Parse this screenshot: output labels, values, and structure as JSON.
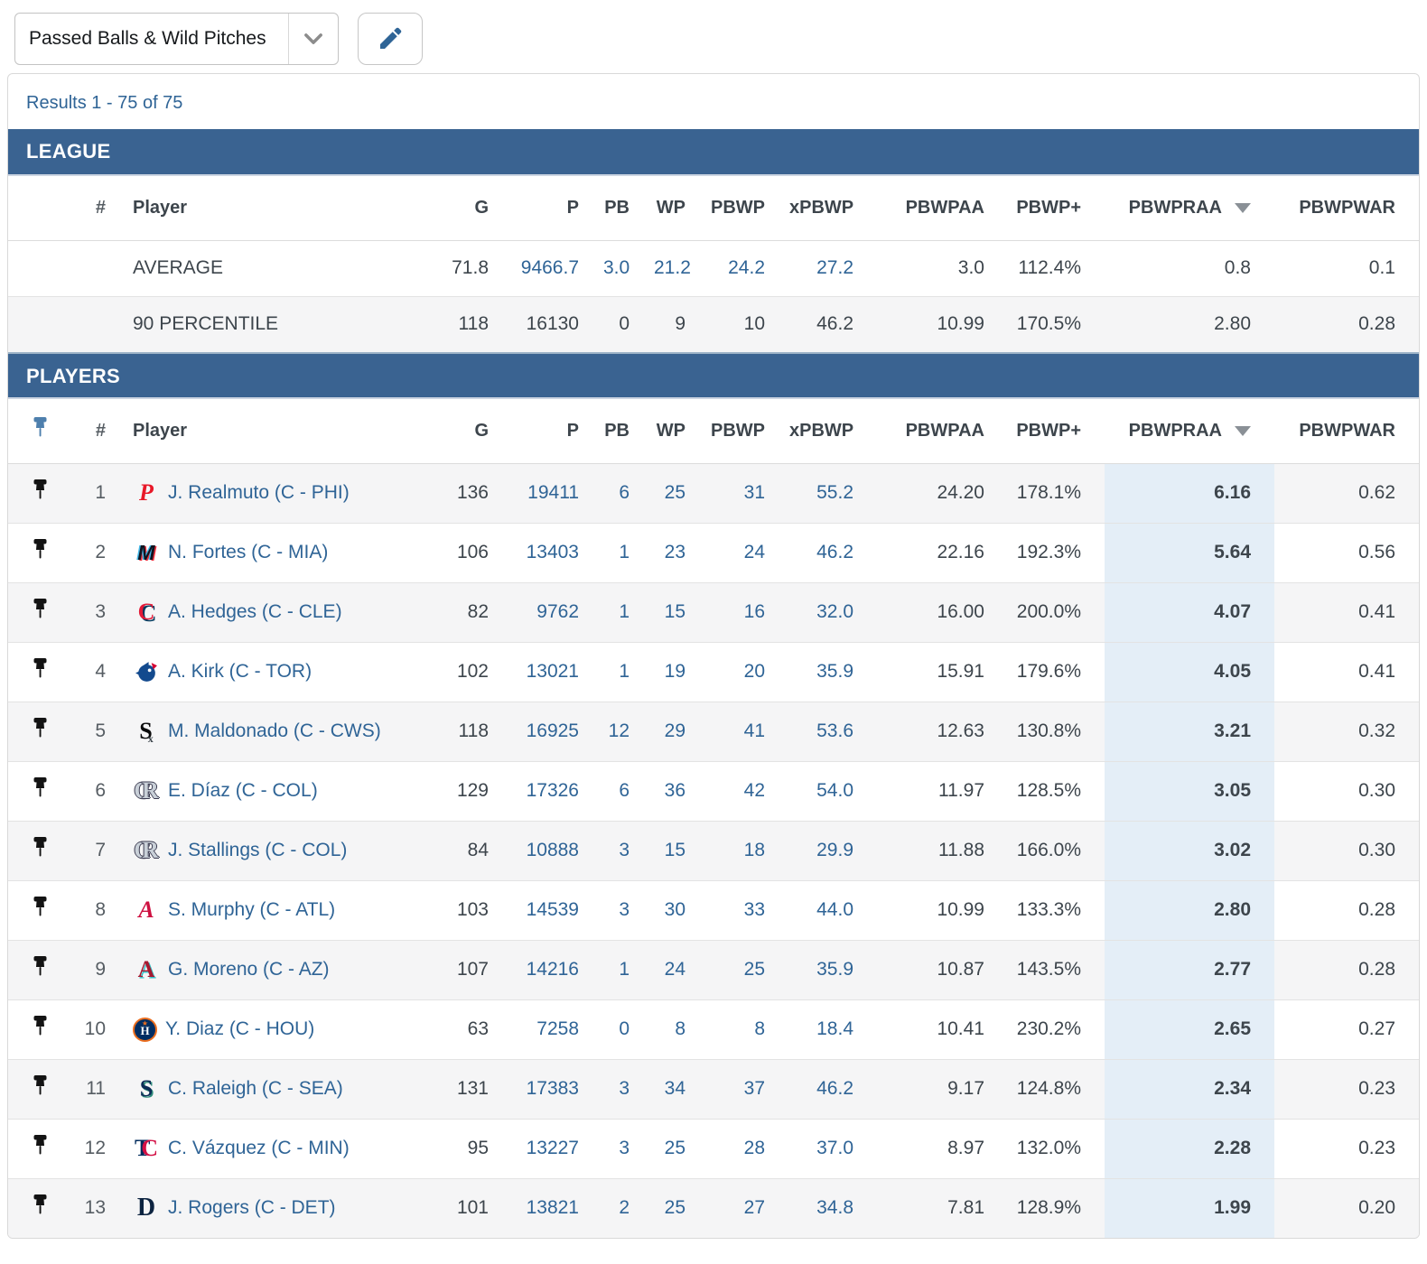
{
  "toolbar": {
    "dropdown_value": "Passed Balls & Wild Pitches"
  },
  "results_text": "Results 1 - 75 of 75",
  "columns": [
    "#",
    "Player",
    "G",
    "P",
    "PB",
    "WP",
    "PBWP",
    "xPBWP",
    "PBWPAA",
    "PBWP+",
    "PBWPRAA",
    "PBWPWAR"
  ],
  "sort": {
    "column": "PBWPRAA",
    "direction": "desc"
  },
  "colors": {
    "bar_blue": "#3a6391",
    "link_blue": "#2f6496",
    "highlight_column": "#e4eef7",
    "header_pin": "#4e7fad",
    "row_pin": "#131313",
    "stripe": "#f5f5f6"
  },
  "league": {
    "section_title": "LEAGUE",
    "rows": [
      {
        "label": "AVERAGE",
        "g": "71.8",
        "p": "9466.7",
        "pb": "3.0",
        "wp": "21.2",
        "pbwp": "24.2",
        "xpbwp": "27.2",
        "pbwpaa": "3.0",
        "pbwp_plus": "112.4%",
        "pbwpraa": "0.8",
        "pbwpwar": "0.1",
        "stat_links": true,
        "striped": false
      },
      {
        "label": "90 PERCENTILE",
        "g": "118",
        "p": "16130",
        "pb": "0",
        "wp": "9",
        "pbwp": "10",
        "xpbwp": "46.2",
        "pbwpaa": "10.99",
        "pbwp_plus": "170.5%",
        "pbwpraa": "2.80",
        "pbwpwar": "0.28",
        "stat_links": false,
        "striped": true
      }
    ]
  },
  "players": {
    "section_title": "PLAYERS",
    "rows": [
      {
        "rank": "1",
        "team": "PHI",
        "name": "J. Realmuto (C - PHI)",
        "g": "136",
        "p": "19411",
        "pb": "6",
        "wp": "25",
        "pbwp": "31",
        "xpbwp": "55.2",
        "pbwpaa": "24.20",
        "pbwp_plus": "178.1%",
        "pbwpraa": "6.16",
        "pbwpwar": "0.62"
      },
      {
        "rank": "2",
        "team": "MIA",
        "name": "N. Fortes (C - MIA)",
        "g": "106",
        "p": "13403",
        "pb": "1",
        "wp": "23",
        "pbwp": "24",
        "xpbwp": "46.2",
        "pbwpaa": "22.16",
        "pbwp_plus": "192.3%",
        "pbwpraa": "5.64",
        "pbwpwar": "0.56"
      },
      {
        "rank": "3",
        "team": "CLE",
        "name": "A. Hedges (C - CLE)",
        "g": "82",
        "p": "9762",
        "pb": "1",
        "wp": "15",
        "pbwp": "16",
        "xpbwp": "32.0",
        "pbwpaa": "16.00",
        "pbwp_plus": "200.0%",
        "pbwpraa": "4.07",
        "pbwpwar": "0.41"
      },
      {
        "rank": "4",
        "team": "TOR",
        "name": "A. Kirk (C - TOR)",
        "g": "102",
        "p": "13021",
        "pb": "1",
        "wp": "19",
        "pbwp": "20",
        "xpbwp": "35.9",
        "pbwpaa": "15.91",
        "pbwp_plus": "179.6%",
        "pbwpraa": "4.05",
        "pbwpwar": "0.41"
      },
      {
        "rank": "5",
        "team": "CWS",
        "name": "M. Maldonado (C - CWS)",
        "g": "118",
        "p": "16925",
        "pb": "12",
        "wp": "29",
        "pbwp": "41",
        "xpbwp": "53.6",
        "pbwpaa": "12.63",
        "pbwp_plus": "130.8%",
        "pbwpraa": "3.21",
        "pbwpwar": "0.32"
      },
      {
        "rank": "6",
        "team": "COL",
        "name": "E. Díaz (C - COL)",
        "g": "129",
        "p": "17326",
        "pb": "6",
        "wp": "36",
        "pbwp": "42",
        "xpbwp": "54.0",
        "pbwpaa": "11.97",
        "pbwp_plus": "128.5%",
        "pbwpraa": "3.05",
        "pbwpwar": "0.30"
      },
      {
        "rank": "7",
        "team": "COL",
        "name": "J. Stallings (C - COL)",
        "g": "84",
        "p": "10888",
        "pb": "3",
        "wp": "15",
        "pbwp": "18",
        "xpbwp": "29.9",
        "pbwpaa": "11.88",
        "pbwp_plus": "166.0%",
        "pbwpraa": "3.02",
        "pbwpwar": "0.30"
      },
      {
        "rank": "8",
        "team": "ATL",
        "name": "S. Murphy (C - ATL)",
        "g": "103",
        "p": "14539",
        "pb": "3",
        "wp": "30",
        "pbwp": "33",
        "xpbwp": "44.0",
        "pbwpaa": "10.99",
        "pbwp_plus": "133.3%",
        "pbwpraa": "2.80",
        "pbwpwar": "0.28"
      },
      {
        "rank": "9",
        "team": "AZ",
        "name": "G. Moreno (C - AZ)",
        "g": "107",
        "p": "14216",
        "pb": "1",
        "wp": "24",
        "pbwp": "25",
        "xpbwp": "35.9",
        "pbwpaa": "10.87",
        "pbwp_plus": "143.5%",
        "pbwpraa": "2.77",
        "pbwpwar": "0.28"
      },
      {
        "rank": "10",
        "team": "HOU",
        "name": "Y. Diaz (C - HOU)",
        "g": "63",
        "p": "7258",
        "pb": "0",
        "wp": "8",
        "pbwp": "8",
        "xpbwp": "18.4",
        "pbwpaa": "10.41",
        "pbwp_plus": "230.2%",
        "pbwpraa": "2.65",
        "pbwpwar": "0.27"
      },
      {
        "rank": "11",
        "team": "SEA",
        "name": "C. Raleigh (C - SEA)",
        "g": "131",
        "p": "17383",
        "pb": "3",
        "wp": "34",
        "pbwp": "37",
        "xpbwp": "46.2",
        "pbwpaa": "9.17",
        "pbwp_plus": "124.8%",
        "pbwpraa": "2.34",
        "pbwpwar": "0.23"
      },
      {
        "rank": "12",
        "team": "MIN",
        "name": "C. Vázquez (C - MIN)",
        "g": "95",
        "p": "13227",
        "pb": "3",
        "wp": "25",
        "pbwp": "28",
        "xpbwp": "37.0",
        "pbwpaa": "8.97",
        "pbwp_plus": "132.0%",
        "pbwpraa": "2.28",
        "pbwpwar": "0.23"
      },
      {
        "rank": "13",
        "team": "DET",
        "name": "J. Rogers (C - DET)",
        "g": "101",
        "p": "13821",
        "pb": "2",
        "wp": "25",
        "pbwp": "27",
        "xpbwp": "34.8",
        "pbwpaa": "7.81",
        "pbwp_plus": "128.9%",
        "pbwpraa": "1.99",
        "pbwpwar": "0.20"
      }
    ]
  },
  "team_logos": {
    "PHI": {
      "kind": "letters",
      "text": "P",
      "colors": [
        "#e81828"
      ]
    },
    "MIA": {
      "kind": "letters",
      "text": "M",
      "colors": [
        "#10131f"
      ]
    },
    "CLE": {
      "kind": "letters",
      "text": "C",
      "colors": [
        "#e31937"
      ]
    },
    "TOR": {
      "kind": "bird",
      "body": "#134a8e",
      "leaf": "#d50032"
    },
    "CWS": {
      "kind": "letters",
      "text": "S",
      "colors": [
        "#0b0b0b"
      ]
    },
    "COL": {
      "kind": "letters",
      "text": "CR",
      "colors": [
        "#c9d0d8",
        "#c9d0d8"
      ]
    },
    "ATL": {
      "kind": "letters",
      "text": "A",
      "colors": [
        "#ce1141"
      ]
    },
    "AZ": {
      "kind": "letters",
      "text": "A",
      "colors": [
        "#a71930"
      ]
    },
    "HOU": {
      "kind": "circle",
      "text": "H",
      "bg": "#002d62",
      "ring": "#eb6e1f",
      "star_color": "#eb6e1f"
    },
    "SEA": {
      "kind": "letters",
      "text": "S",
      "colors": [
        "#0c2c56"
      ]
    },
    "MIN": {
      "kind": "letters",
      "text": "TC",
      "colors": [
        "#002b5c",
        "#d31145"
      ]
    },
    "DET": {
      "kind": "letters",
      "text": "D",
      "colors": [
        "#0c2340"
      ]
    }
  }
}
